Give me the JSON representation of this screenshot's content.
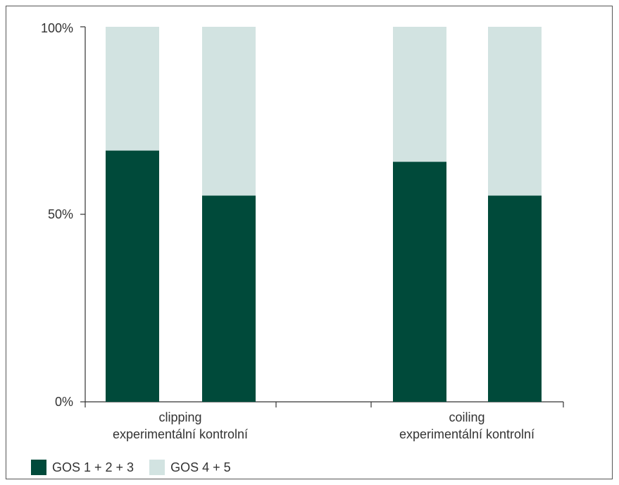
{
  "chart_data": {
    "type": "bar",
    "stacked": true,
    "percent": true,
    "groups": [
      {
        "label": "clipping",
        "sublabel": "experimentální kontrolní"
      },
      {
        "label": "coiling",
        "sublabel": "experimentální kontrolní"
      }
    ],
    "categories": [
      "clipping experimentální",
      "clipping kontrolní",
      "coiling experimentální",
      "coiling kontrolní"
    ],
    "series": [
      {
        "name": "GOS 1 + 2 + 3",
        "color": "#004a3a",
        "values": [
          67,
          55,
          64,
          55
        ]
      },
      {
        "name": "GOS 4 + 5",
        "color": "#d2e3e1",
        "values": [
          33,
          45,
          36,
          45
        ]
      }
    ],
    "yticks": [
      "0%",
      "50%",
      "100%"
    ],
    "ylim": [
      0,
      100
    ],
    "legend_position": "bottom-left",
    "grid": false
  }
}
